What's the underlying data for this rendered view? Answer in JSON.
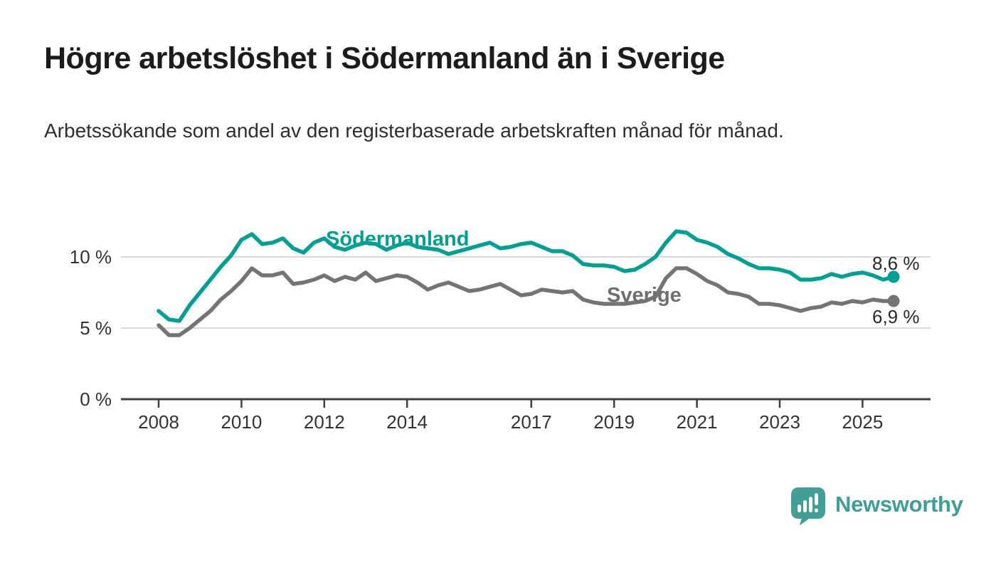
{
  "title": "Högre arbetslöshet i Södermanland än i Sverige",
  "subtitle": "Arbetssökande som andel av den registerbaserade arbetskraften månad för månad.",
  "logo": {
    "text": "Newsworthy",
    "icon": "speech-bubble-bar-chart-icon",
    "color": "#3da097"
  },
  "chart_data": {
    "type": "line",
    "unit": "%",
    "grid": "horizontal-only",
    "legend_position": "inline-labels-on-lines",
    "ylim": [
      0,
      12.5
    ],
    "xlim": [
      2007.1,
      2026.6
    ],
    "y_ticks": [
      {
        "value": 0,
        "label": "0 %"
      },
      {
        "value": 5,
        "label": "5 %"
      },
      {
        "value": 10,
        "label": "10 %"
      }
    ],
    "x_tick_years": [
      "2008",
      "2010",
      "2012",
      "2014",
      "2017",
      "2019",
      "2021",
      "2023",
      "2025"
    ],
    "x": [
      2008.0,
      2008.25,
      2008.5,
      2008.75,
      2009.0,
      2009.25,
      2009.5,
      2009.75,
      2010.0,
      2010.25,
      2010.5,
      2010.75,
      2011.0,
      2011.25,
      2011.5,
      2011.75,
      2012.0,
      2012.25,
      2012.5,
      2012.75,
      2013.0,
      2013.25,
      2013.5,
      2013.75,
      2014.0,
      2014.25,
      2014.5,
      2014.75,
      2015.0,
      2015.25,
      2015.5,
      2015.75,
      2016.0,
      2016.25,
      2016.5,
      2016.75,
      2017.0,
      2017.25,
      2017.5,
      2017.75,
      2018.0,
      2018.25,
      2018.5,
      2018.75,
      2019.0,
      2019.25,
      2019.5,
      2019.75,
      2020.0,
      2020.25,
      2020.5,
      2020.75,
      2021.0,
      2021.25,
      2021.5,
      2021.75,
      2022.0,
      2022.25,
      2022.5,
      2022.75,
      2023.0,
      2023.25,
      2023.5,
      2023.75,
      2024.0,
      2024.25,
      2024.5,
      2024.75,
      2025.0,
      2025.25,
      2025.5,
      2025.75
    ],
    "series": [
      {
        "name": "Södermanland",
        "color": "#00a092",
        "end_label": "8,6 %",
        "end_value": 8.6,
        "values": [
          6.2,
          5.6,
          5.5,
          6.6,
          7.5,
          8.4,
          9.3,
          10.1,
          11.2,
          11.6,
          10.9,
          11.0,
          11.3,
          10.6,
          10.3,
          11.0,
          11.3,
          10.7,
          10.5,
          10.8,
          11.0,
          10.9,
          10.5,
          10.8,
          11.0,
          10.7,
          10.6,
          10.5,
          10.2,
          10.4,
          10.6,
          10.8,
          11.0,
          10.6,
          10.7,
          10.9,
          11.0,
          10.7,
          10.4,
          10.4,
          10.1,
          9.5,
          9.4,
          9.4,
          9.3,
          9.0,
          9.1,
          9.5,
          10.0,
          11.0,
          11.8,
          11.7,
          11.2,
          11.0,
          10.7,
          10.2,
          9.9,
          9.5,
          9.2,
          9.2,
          9.1,
          8.9,
          8.4,
          8.4,
          8.5,
          8.8,
          8.6,
          8.8,
          8.9,
          8.7,
          8.4,
          8.6
        ]
      },
      {
        "name": "Sverige",
        "color": "#747474",
        "end_label": "6,9 %",
        "end_value": 6.9,
        "values": [
          5.2,
          4.5,
          4.5,
          5.0,
          5.6,
          6.2,
          7.0,
          7.6,
          8.3,
          9.2,
          8.7,
          8.7,
          8.9,
          8.1,
          8.2,
          8.4,
          8.7,
          8.3,
          8.6,
          8.4,
          8.9,
          8.3,
          8.5,
          8.7,
          8.6,
          8.2,
          7.7,
          8.0,
          8.2,
          7.9,
          7.6,
          7.7,
          7.9,
          8.1,
          7.7,
          7.3,
          7.4,
          7.7,
          7.6,
          7.5,
          7.6,
          7.0,
          6.8,
          6.7,
          6.7,
          6.7,
          6.8,
          6.9,
          7.2,
          8.5,
          9.2,
          9.2,
          8.8,
          8.3,
          8.0,
          7.5,
          7.4,
          7.2,
          6.7,
          6.7,
          6.6,
          6.4,
          6.2,
          6.4,
          6.5,
          6.8,
          6.7,
          6.9,
          6.8,
          7.0,
          6.9,
          6.9
        ]
      }
    ]
  }
}
